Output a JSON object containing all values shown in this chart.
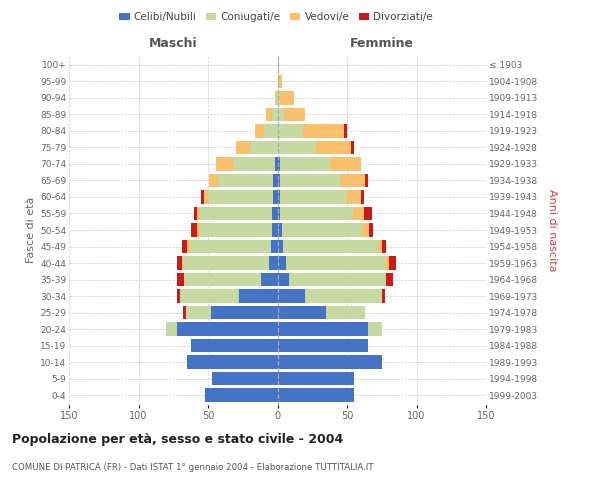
{
  "age_groups": [
    "0-4",
    "5-9",
    "10-14",
    "15-19",
    "20-24",
    "25-29",
    "30-34",
    "35-39",
    "40-44",
    "45-49",
    "50-54",
    "55-59",
    "60-64",
    "65-69",
    "70-74",
    "75-79",
    "80-84",
    "85-89",
    "90-94",
    "95-99",
    "100+"
  ],
  "birth_years": [
    "1999-2003",
    "1994-1998",
    "1989-1993",
    "1984-1988",
    "1979-1983",
    "1974-1978",
    "1969-1973",
    "1964-1968",
    "1959-1963",
    "1954-1958",
    "1949-1953",
    "1944-1948",
    "1939-1943",
    "1934-1938",
    "1929-1933",
    "1924-1928",
    "1919-1923",
    "1914-1918",
    "1909-1913",
    "1904-1908",
    "≤ 1903"
  ],
  "male_celibe": [
    52,
    47,
    65,
    62,
    72,
    48,
    28,
    12,
    6,
    5,
    4,
    4,
    3,
    3,
    2,
    0,
    0,
    0,
    0,
    0,
    0
  ],
  "male_coniugato": [
    0,
    0,
    0,
    0,
    8,
    18,
    42,
    55,
    62,
    58,
    52,
    52,
    47,
    40,
    30,
    20,
    10,
    4,
    1,
    0,
    0
  ],
  "male_vedovo": [
    0,
    0,
    0,
    0,
    0,
    0,
    0,
    0,
    1,
    2,
    2,
    2,
    3,
    6,
    12,
    10,
    6,
    4,
    1,
    0,
    0
  ],
  "male_divorziato": [
    0,
    0,
    0,
    0,
    0,
    2,
    2,
    5,
    3,
    4,
    4,
    2,
    2,
    0,
    0,
    0,
    0,
    0,
    0,
    0,
    0
  ],
  "female_celibe": [
    55,
    55,
    75,
    65,
    65,
    35,
    20,
    8,
    6,
    4,
    3,
    2,
    2,
    2,
    2,
    0,
    0,
    0,
    0,
    0,
    0
  ],
  "female_coniugato": [
    0,
    0,
    0,
    0,
    10,
    28,
    55,
    70,
    72,
    68,
    58,
    52,
    48,
    43,
    36,
    28,
    18,
    5,
    2,
    0,
    0
  ],
  "female_vedovo": [
    0,
    0,
    0,
    0,
    0,
    0,
    0,
    0,
    2,
    3,
    5,
    8,
    10,
    18,
    22,
    25,
    30,
    15,
    10,
    3,
    1
  ],
  "female_divorziato": [
    0,
    0,
    0,
    0,
    0,
    0,
    2,
    5,
    5,
    3,
    3,
    6,
    2,
    2,
    0,
    2,
    2,
    0,
    0,
    0,
    0
  ],
  "color_celibe": "#4472c4",
  "color_coniugato": "#c5d9a0",
  "color_vedovo": "#f9bf6a",
  "color_divorziato": "#cc1a1a",
  "title": "Popolazione per età, sesso e stato civile - 2004",
  "subtitle": "COMUNE DI PATRICA (FR) - Dati ISTAT 1° gennaio 2004 - Elaborazione TUTTITALIA.IT",
  "label_maschi": "Maschi",
  "label_femmine": "Femmine",
  "ylabel_left": "Fasce di età",
  "ylabel_right": "Anni di nascita",
  "legend_labels": [
    "Celibi/Nubili",
    "Coniugati/e",
    "Vedovi/e",
    "Divorziati/e"
  ],
  "xlim": 150,
  "bg_color": "#ffffff",
  "grid_color": "#cccccc",
  "bar_height": 0.82
}
